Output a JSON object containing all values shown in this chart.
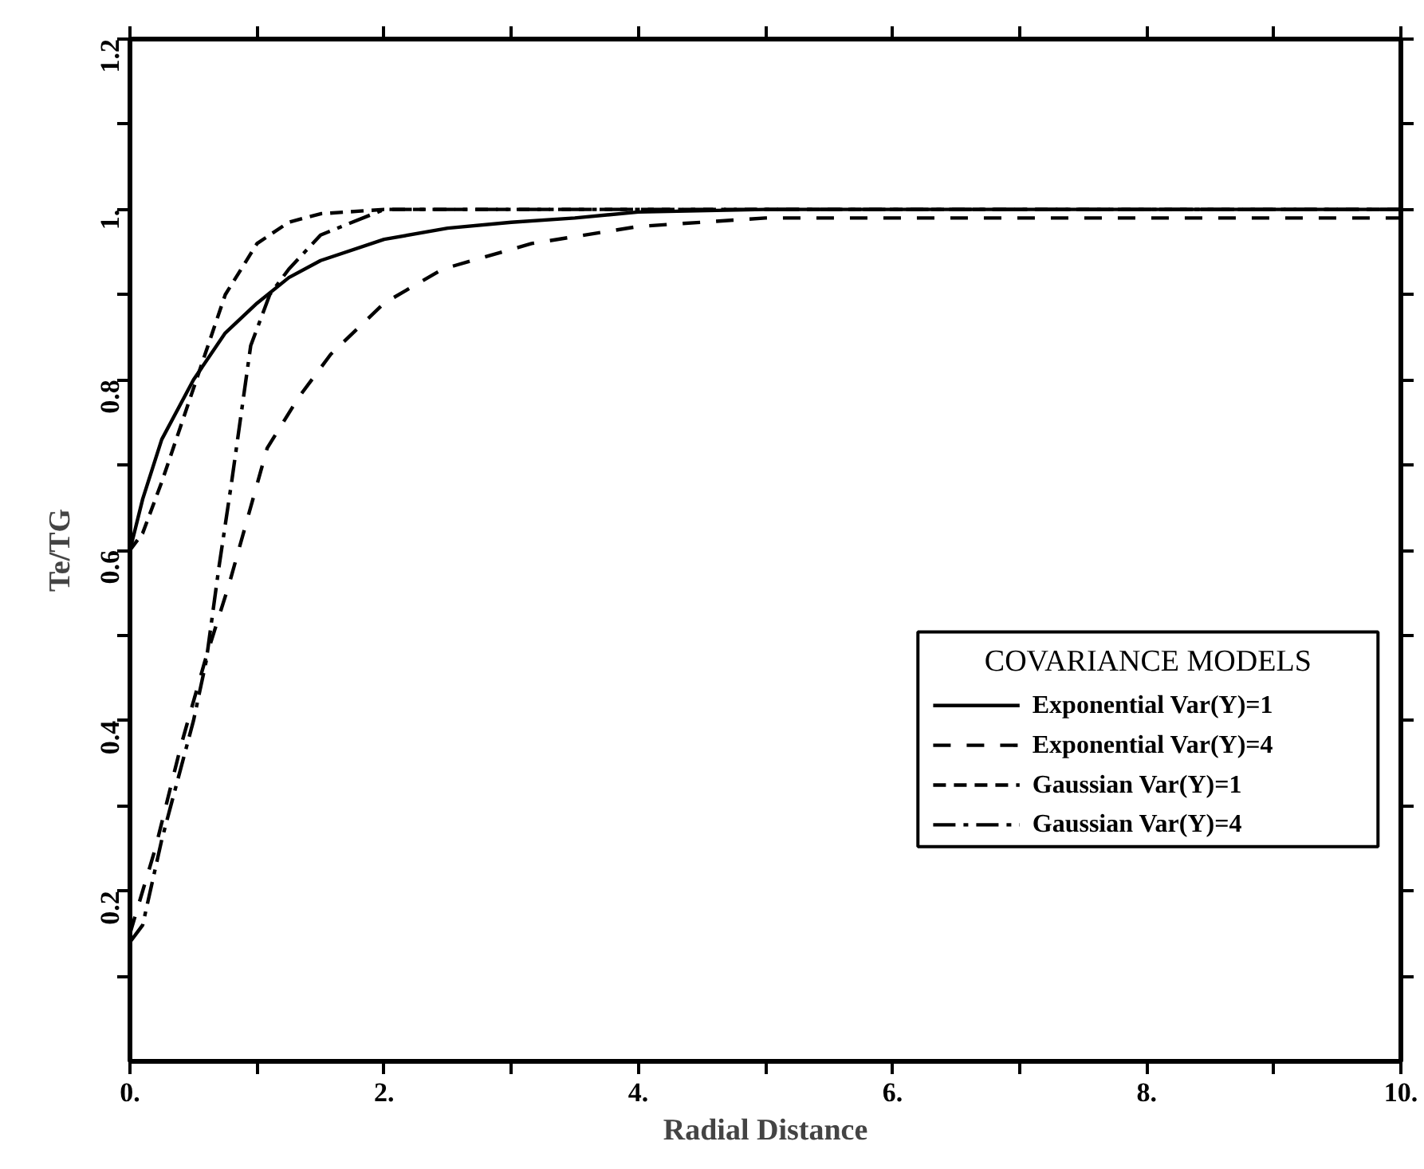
{
  "chart_data": {
    "type": "line",
    "xlabel": "Radial Distance",
    "ylabel": "Te/TG",
    "legend_title": "COVARIANCE MODELS",
    "xlim": [
      0,
      10
    ],
    "ylim": [
      0,
      1.2
    ],
    "xticks": [
      {
        "value": 0,
        "label": "0."
      },
      {
        "value": 1,
        "label": null
      },
      {
        "value": 2,
        "label": "2."
      },
      {
        "value": 3,
        "label": null
      },
      {
        "value": 4,
        "label": "4."
      },
      {
        "value": 5,
        "label": null
      },
      {
        "value": 6,
        "label": "6."
      },
      {
        "value": 7,
        "label": null
      },
      {
        "value": 8,
        "label": "8."
      },
      {
        "value": 9,
        "label": null
      },
      {
        "value": 10,
        "label": "10."
      }
    ],
    "yticks": [
      {
        "value": 0.1,
        "label": null
      },
      0.2,
      {
        "value": 0.3,
        "label": null
      },
      0.4,
      {
        "value": 0.5,
        "label": null
      },
      0.6,
      {
        "value": 0.7,
        "label": null
      },
      0.8,
      {
        "value": 0.9,
        "label": null
      },
      {
        "value": 1.0,
        "label": "1."
      },
      {
        "value": 1.1,
        "label": null
      },
      1.2
    ],
    "grid": false,
    "legend": "right",
    "marker": "none",
    "series": [
      {
        "name": "Exponential Var(Y)=1",
        "color": "#000000",
        "line_style": "solid",
        "x": [
          0,
          0.1,
          0.25,
          0.5,
          0.75,
          1.0,
          1.25,
          1.5,
          2,
          2.5,
          3,
          3.5,
          4,
          5,
          10
        ],
        "values": [
          0.6,
          0.66,
          0.73,
          0.8,
          0.855,
          0.89,
          0.92,
          0.94,
          0.965,
          0.978,
          0.985,
          0.99,
          0.997,
          1.0,
          1.0
        ]
      },
      {
        "name": "Exponential Var(Y)=4",
        "color": "#000000",
        "line_style": "longdashed",
        "x": [
          0,
          0.2,
          0.4,
          0.59,
          0.78,
          1.08,
          1.33,
          1.58,
          2.0,
          2.46,
          3.16,
          4,
          5,
          10
        ],
        "values": [
          0.15,
          0.25,
          0.37,
          0.47,
          0.56,
          0.72,
          0.78,
          0.83,
          0.89,
          0.93,
          0.96,
          0.98,
          0.99,
          0.99
        ]
      },
      {
        "name": "Gaussian Var(Y)=1",
        "color": "#000000",
        "line_style": "dashed",
        "x": [
          0,
          0.1,
          0.25,
          0.5,
          0.75,
          1.0,
          1.25,
          1.5,
          2,
          10
        ],
        "values": [
          0.6,
          0.62,
          0.68,
          0.79,
          0.9,
          0.96,
          0.985,
          0.995,
          1.0,
          1.0
        ]
      },
      {
        "name": "Gaussian Var(Y)=4",
        "color": "#000000",
        "line_style": "dashdot",
        "x": [
          0,
          0.1,
          0.25,
          0.5,
          0.6,
          0.7,
          0.8,
          0.95,
          1.1,
          1.25,
          1.5,
          2,
          10
        ],
        "values": [
          0.14,
          0.16,
          0.26,
          0.4,
          0.47,
          0.58,
          0.68,
          0.84,
          0.9,
          0.93,
          0.97,
          1.0,
          1.0
        ]
      }
    ]
  }
}
